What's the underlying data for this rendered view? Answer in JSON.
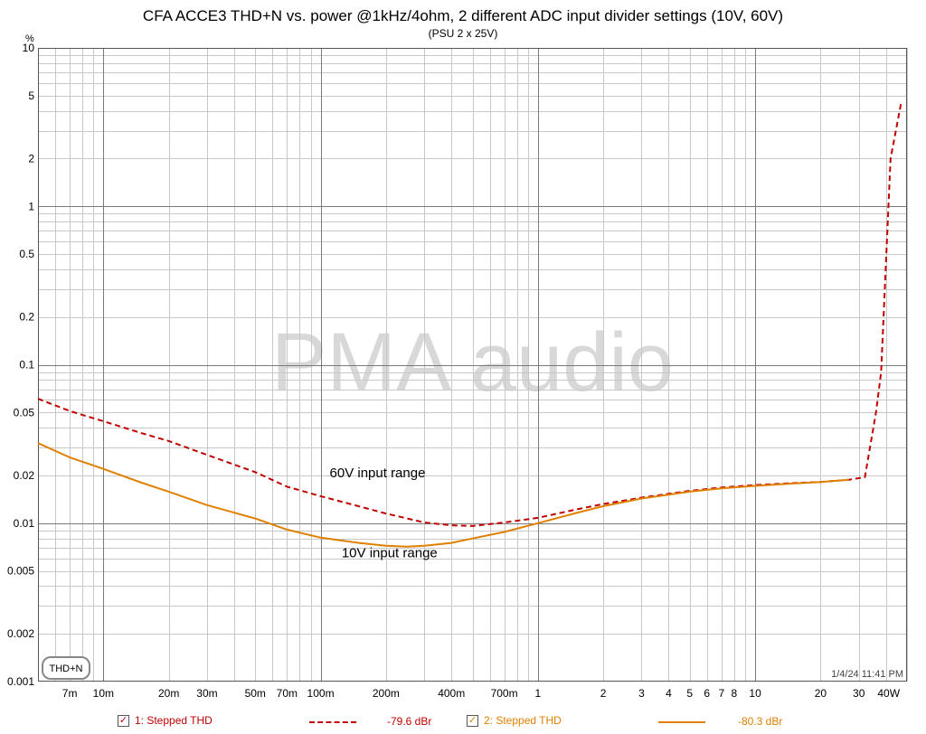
{
  "title": "CFA ACCE3 THD+N vs. power @1kHz/4ohm, 2 different ADC input divider settings (10V, 60V)",
  "subtitle": "(PSU 2 x 25V)",
  "watermark": "PMA audio",
  "timestamp": "1/4/24 11:41 PM",
  "chart_badge": "THD+N",
  "chart_data": {
    "type": "line",
    "x_scale": "log",
    "y_scale": "log",
    "xlim": [
      0.005,
      50
    ],
    "ylim": [
      0.001,
      10
    ],
    "grid": true,
    "y_unit": "%",
    "x_ticks": [
      {
        "v": 0.007,
        "label": "7m"
      },
      {
        "v": 0.01,
        "label": "10m"
      },
      {
        "v": 0.02,
        "label": "20m"
      },
      {
        "v": 0.03,
        "label": "30m"
      },
      {
        "v": 0.05,
        "label": "50m"
      },
      {
        "v": 0.07,
        "label": "70m"
      },
      {
        "v": 0.1,
        "label": "100m"
      },
      {
        "v": 0.2,
        "label": "200m"
      },
      {
        "v": 0.4,
        "label": "400m"
      },
      {
        "v": 0.7,
        "label": "700m"
      },
      {
        "v": 1,
        "label": "1"
      },
      {
        "v": 2,
        "label": "2"
      },
      {
        "v": 3,
        "label": "3"
      },
      {
        "v": 4,
        "label": "4"
      },
      {
        "v": 5,
        "label": "5"
      },
      {
        "v": 6,
        "label": "6"
      },
      {
        "v": 7,
        "label": "7"
      },
      {
        "v": 8,
        "label": "8"
      },
      {
        "v": 10,
        "label": "10"
      },
      {
        "v": 20,
        "label": "20"
      },
      {
        "v": 30,
        "label": "30"
      },
      {
        "v": 40,
        "label": "40W"
      }
    ],
    "y_ticks": [
      {
        "v": 10,
        "label": "10"
      },
      {
        "v": 5,
        "label": "5"
      },
      {
        "v": 2,
        "label": "2"
      },
      {
        "v": 1,
        "label": "1"
      },
      {
        "v": 0.5,
        "label": "0.5"
      },
      {
        "v": 0.2,
        "label": "0.2"
      },
      {
        "v": 0.1,
        "label": "0.1"
      },
      {
        "v": 0.05,
        "label": "0.05"
      },
      {
        "v": 0.02,
        "label": "0.02"
      },
      {
        "v": 0.01,
        "label": "0.01"
      },
      {
        "v": 0.005,
        "label": "0.005"
      },
      {
        "v": 0.002,
        "label": "0.002"
      },
      {
        "v": 0.001,
        "label": "0.001"
      }
    ],
    "annotations": [
      {
        "text": "60V input range",
        "x": 0.11,
        "y": 0.0195
      },
      {
        "text": "10V input range",
        "x": 0.125,
        "y": 0.0061
      }
    ],
    "series": [
      {
        "name": "1: Stepped THD",
        "value": "-79.6 dBr",
        "color": "#c00000",
        "style": "dashed",
        "x": [
          0.005,
          0.007,
          0.01,
          0.015,
          0.02,
          0.03,
          0.05,
          0.07,
          0.1,
          0.2,
          0.3,
          0.4,
          0.5,
          0.7,
          1,
          1.5,
          2,
          3,
          5,
          7,
          10,
          15,
          20,
          27,
          32,
          36,
          38,
          42,
          47
        ],
        "y": [
          0.061,
          0.051,
          0.044,
          0.037,
          0.033,
          0.027,
          0.021,
          0.017,
          0.0148,
          0.0115,
          0.0101,
          0.0097,
          0.0096,
          0.0101,
          0.0108,
          0.0122,
          0.0132,
          0.0145,
          0.016,
          0.0168,
          0.0174,
          0.0179,
          0.0182,
          0.0188,
          0.0195,
          0.05,
          0.09,
          2.0,
          4.5
        ]
      },
      {
        "name": "2: Stepped THD",
        "value": "-80.3 dBr",
        "color": "#e08000",
        "style": "solid",
        "x": [
          0.005,
          0.007,
          0.01,
          0.015,
          0.02,
          0.03,
          0.05,
          0.07,
          0.1,
          0.15,
          0.2,
          0.25,
          0.3,
          0.4,
          0.5,
          0.7,
          1,
          1.5,
          2,
          3,
          5,
          7,
          10,
          15,
          20,
          27
        ],
        "y": [
          0.032,
          0.026,
          0.022,
          0.018,
          0.0158,
          0.013,
          0.0107,
          0.0091,
          0.0081,
          0.0075,
          0.0072,
          0.0071,
          0.0072,
          0.0075,
          0.008,
          0.0088,
          0.01,
          0.0116,
          0.0128,
          0.0143,
          0.0158,
          0.0166,
          0.0172,
          0.0178,
          0.0182,
          0.0188
        ]
      }
    ]
  },
  "legend": [
    {
      "checked": "✓",
      "name": "1: Stepped THD",
      "value": "-79.6 dBr"
    },
    {
      "checked": "✓",
      "name": "2: Stepped THD",
      "value": "-80.3 dBr"
    }
  ]
}
